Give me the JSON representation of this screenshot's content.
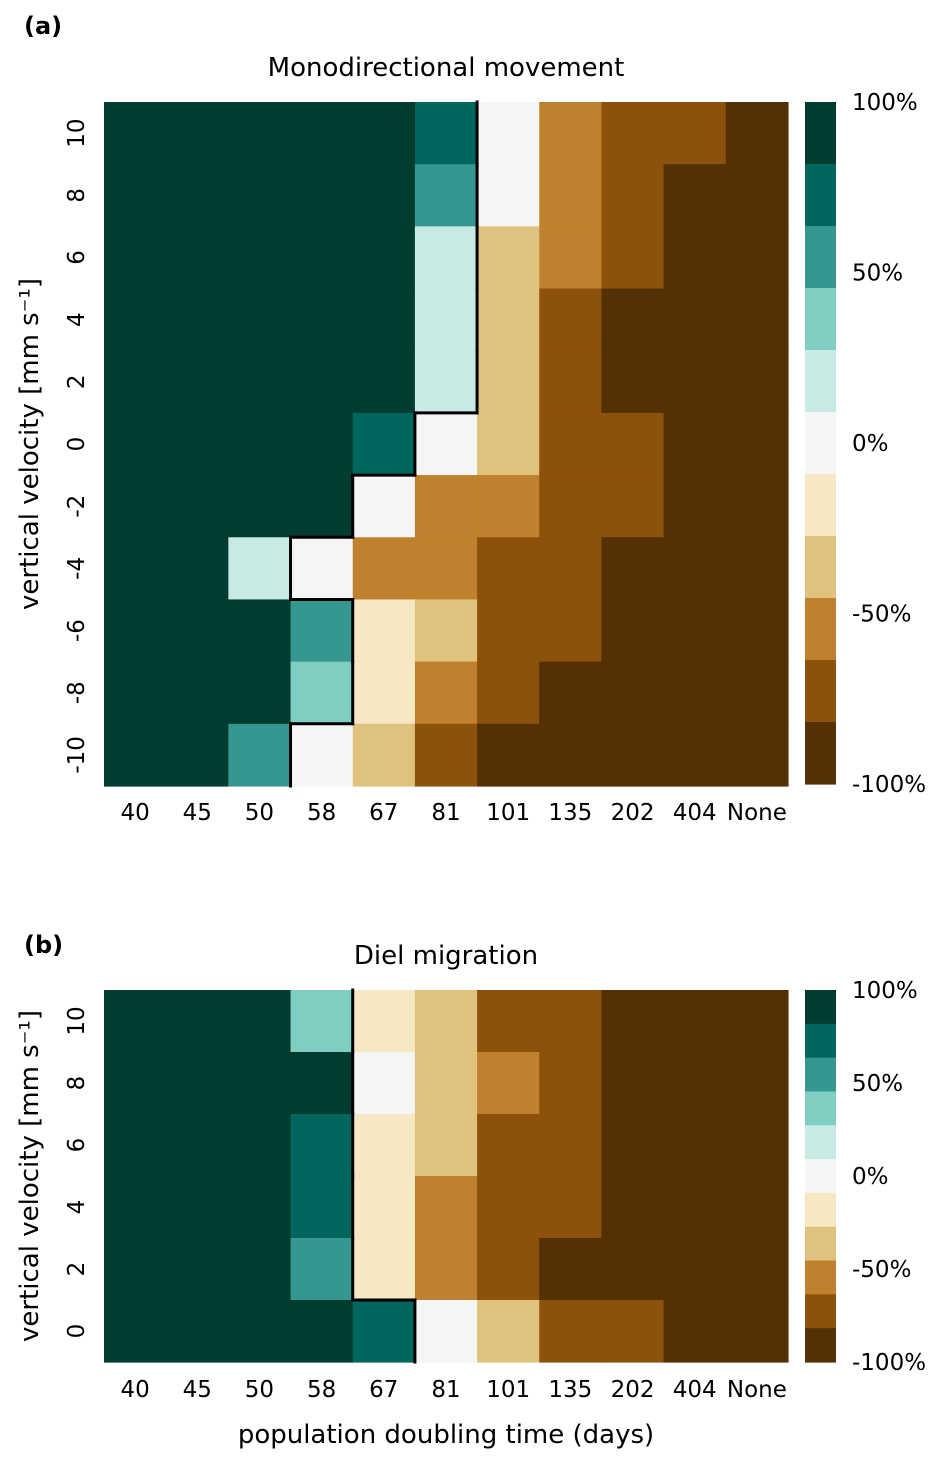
{
  "chart_data": [
    {
      "type": "heatmap",
      "panel_label": "(a)",
      "title": "Monodirectional movement",
      "xlabel": "",
      "ylabel": "vertical velocity [mm s⁻¹]",
      "x_categories": [
        "40",
        "45",
        "50",
        "58",
        "67",
        "81",
        "101",
        "135",
        "202",
        "404",
        "None"
      ],
      "y_categories": [
        "10",
        "8",
        "6",
        "4",
        "2",
        "0",
        "-2",
        "-4",
        "-6",
        "-8",
        "-10"
      ],
      "value_range": [
        -100,
        100
      ],
      "value_unit": "%",
      "colorbar_ticks": [
        "100%",
        "50%",
        "0%",
        "-50%",
        "-100%"
      ],
      "values": [
        [
          100,
          100,
          100,
          100,
          100,
          80,
          0,
          -60,
          -80,
          -80,
          -100
        ],
        [
          100,
          100,
          100,
          100,
          100,
          60,
          0,
          -60,
          -80,
          -100,
          -100
        ],
        [
          100,
          100,
          100,
          100,
          100,
          20,
          -40,
          -60,
          -80,
          -100,
          -100
        ],
        [
          100,
          100,
          100,
          100,
          100,
          20,
          -40,
          -80,
          -100,
          -100,
          -100
        ],
        [
          100,
          100,
          100,
          100,
          100,
          20,
          -40,
          -80,
          -100,
          -100,
          -100
        ],
        [
          100,
          100,
          100,
          100,
          80,
          0,
          -40,
          -80,
          -80,
          -100,
          -100
        ],
        [
          100,
          100,
          100,
          100,
          0,
          -60,
          -60,
          -80,
          -80,
          -100,
          -100
        ],
        [
          100,
          100,
          20,
          0,
          -60,
          -60,
          -80,
          -80,
          -100,
          -100,
          -100
        ],
        [
          100,
          100,
          100,
          60,
          -20,
          -40,
          -80,
          -80,
          -100,
          -100,
          -100
        ],
        [
          100,
          100,
          100,
          40,
          -20,
          -60,
          -80,
          -100,
          -100,
          -100,
          -100
        ],
        [
          100,
          100,
          60,
          0,
          -40,
          -80,
          -100,
          -100,
          -100,
          -100,
          -100
        ]
      ]
    },
    {
      "type": "heatmap",
      "panel_label": "(b)",
      "title": "Diel migration",
      "xlabel": "population doubling time (days)",
      "ylabel": "vertical velocity [mm s⁻¹]",
      "x_categories": [
        "40",
        "45",
        "50",
        "58",
        "67",
        "81",
        "101",
        "135",
        "202",
        "404",
        "None"
      ],
      "y_categories": [
        "10",
        "8",
        "6",
        "4",
        "2",
        "0"
      ],
      "value_range": [
        -100,
        100
      ],
      "value_unit": "%",
      "colorbar_ticks": [
        "100%",
        "50%",
        "0%",
        "-50%",
        "-100%"
      ],
      "values": [
        [
          100,
          100,
          100,
          40,
          -20,
          -40,
          -80,
          -80,
          -100,
          -100,
          -100
        ],
        [
          100,
          100,
          100,
          100,
          0,
          -40,
          -60,
          -80,
          -100,
          -100,
          -100
        ],
        [
          100,
          100,
          100,
          80,
          -20,
          -40,
          -80,
          -80,
          -100,
          -100,
          -100
        ],
        [
          100,
          100,
          100,
          80,
          -20,
          -60,
          -80,
          -80,
          -100,
          -100,
          -100
        ],
        [
          100,
          100,
          100,
          60,
          -20,
          -60,
          -80,
          -100,
          -100,
          -100,
          -100
        ],
        [
          100,
          100,
          100,
          100,
          80,
          0,
          -40,
          -80,
          -80,
          -100,
          -100
        ]
      ]
    }
  ],
  "colors": {
    "scale": [
      "#543005",
      "#8c510a",
      "#bf812d",
      "#dfc27d",
      "#f6e8c3",
      "#f5f5f5",
      "#c7eae5",
      "#80cdc1",
      "#35978f",
      "#01665e",
      "#003c30"
    ]
  }
}
